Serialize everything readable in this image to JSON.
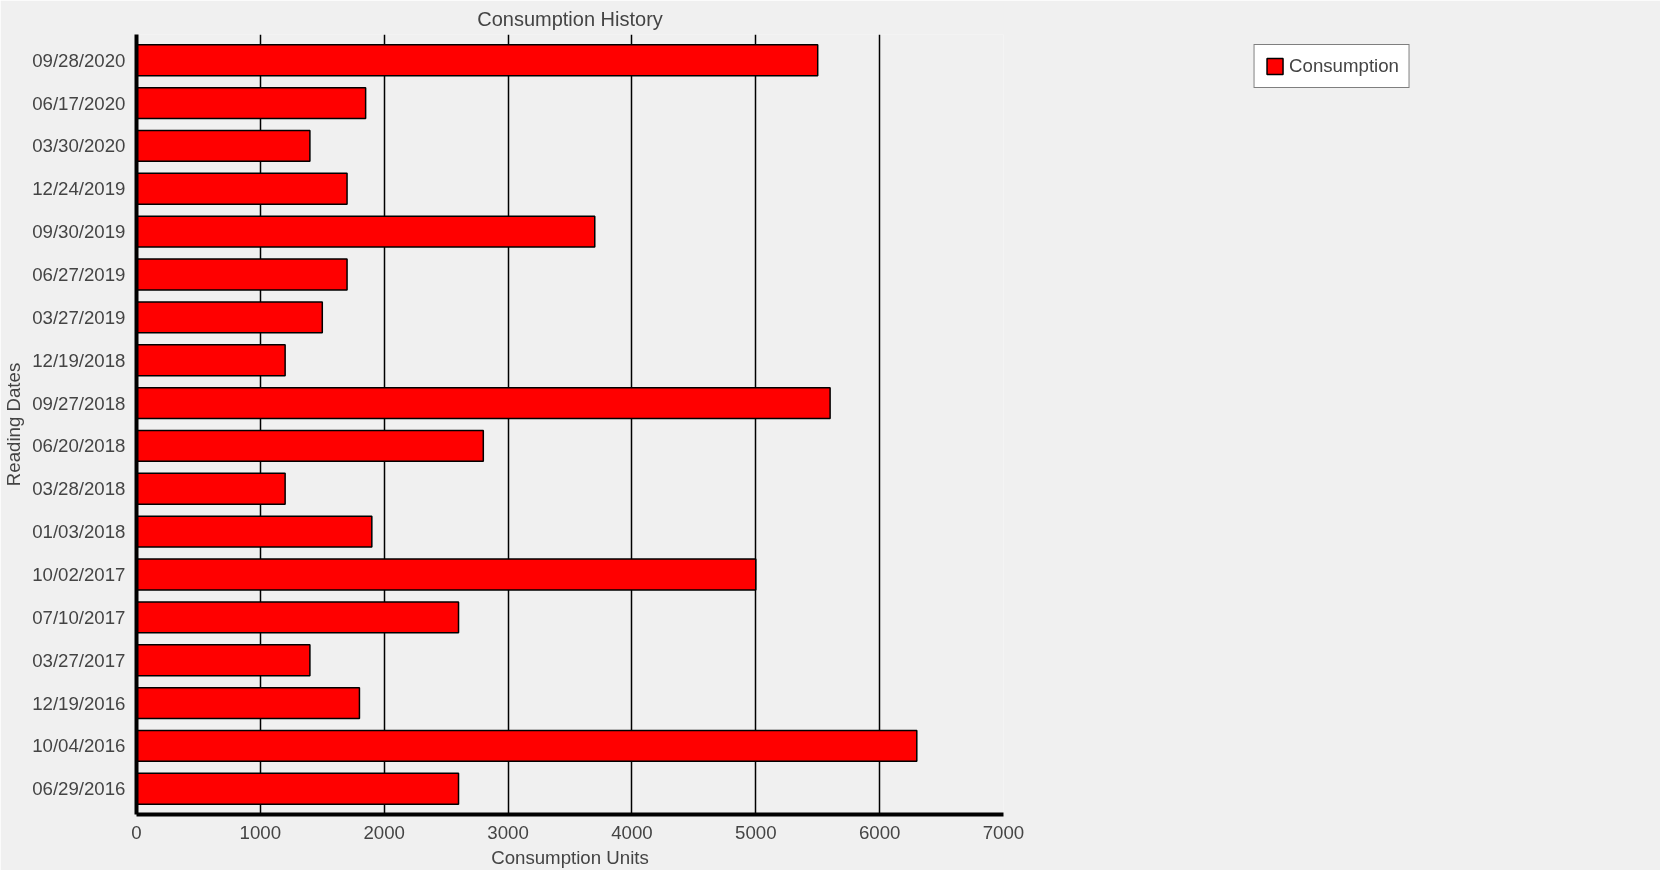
{
  "chart_data": {
    "type": "bar",
    "orientation": "horizontal",
    "title": "Consumption History",
    "xlabel": "Consumption Units",
    "ylabel": "Reading Dates",
    "categories": [
      "09/28/2020",
      "06/17/2020",
      "03/30/2020",
      "12/24/2019",
      "09/30/2019",
      "06/27/2019",
      "03/27/2019",
      "12/19/2018",
      "09/27/2018",
      "06/20/2018",
      "03/28/2018",
      "01/03/2018",
      "10/02/2017",
      "07/10/2017",
      "03/27/2017",
      "12/19/2016",
      "10/04/2016",
      "06/29/2016"
    ],
    "series": [
      {
        "name": "Consumption",
        "color": "#ff0000",
        "values": [
          5500,
          1850,
          1400,
          1700,
          3700,
          1700,
          1500,
          1200,
          5600,
          2800,
          1200,
          1900,
          5000,
          2600,
          1400,
          1800,
          6300,
          2600
        ]
      }
    ],
    "xlim": [
      0,
      7000
    ],
    "xticks": [
      0,
      1000,
      2000,
      3000,
      4000,
      5000,
      6000,
      7000
    ],
    "grid": "x",
    "legend": "top right"
  }
}
